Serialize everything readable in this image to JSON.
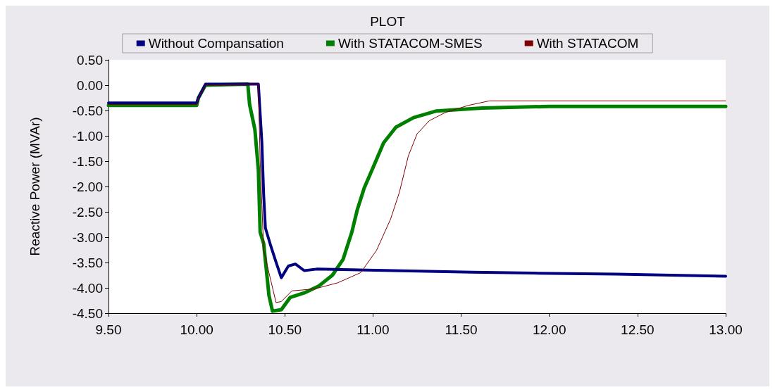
{
  "chart_data": {
    "type": "line",
    "title": "PLOT",
    "ylabel": "Reactive Power (MVAr)",
    "xlim": [
      9.5,
      13.0
    ],
    "xticks": [
      {
        "value": 9.5,
        "label": "9.50"
      },
      {
        "value": 10,
        "label": "10.00"
      },
      {
        "value": 10.5,
        "label": "10.50"
      },
      {
        "value": 11,
        "label": "11.00"
      },
      {
        "value": 11.5,
        "label": "11.50"
      },
      {
        "value": 12,
        "label": "12.00"
      },
      {
        "value": 12.5,
        "label": "12.50"
      },
      {
        "value": 13,
        "label": "13.00"
      }
    ],
    "ylim": [
      -4.5,
      0.5
    ],
    "yticks": [
      {
        "value": -4.5,
        "label": "-4.50"
      },
      {
        "value": -4,
        "label": "-4.00"
      },
      {
        "value": -3.5,
        "label": "-3.50"
      },
      {
        "value": -3,
        "label": "-3.00"
      },
      {
        "value": -2.5,
        "label": "-2.50"
      },
      {
        "value": -2,
        "label": "-2.00"
      },
      {
        "value": -1.5,
        "label": "-1.50"
      },
      {
        "value": -1,
        "label": "-1.00"
      },
      {
        "value": -0.5,
        "label": "-0.50"
      },
      {
        "value": 0,
        "label": "0.00"
      },
      {
        "value": 0.5,
        "label": "0.50"
      }
    ],
    "grid": false,
    "legend": "top",
    "marker": "none",
    "line_style": "solid",
    "series": [
      {
        "name": "Without Compansation",
        "color": "#000080",
        "x": [
          9.5,
          10.0,
          10.01,
          10.05,
          10.35,
          10.37,
          10.38,
          10.39,
          10.42,
          10.45,
          10.48,
          10.52,
          10.56,
          10.61,
          10.68,
          11.56,
          11.91,
          12.38,
          13.0
        ],
        "values": [
          -0.35,
          -0.35,
          -0.25,
          0.02,
          0.02,
          -1.14,
          -2.16,
          -2.82,
          -3.17,
          -3.49,
          -3.8,
          -3.57,
          -3.53,
          -3.66,
          -3.63,
          -3.69,
          -3.71,
          -3.73,
          -3.77
        ]
      },
      {
        "name": "With STATACOM-SMES",
        "color": "#008000",
        "x": [
          9.5,
          10.0,
          10.01,
          10.05,
          10.29,
          10.3,
          10.33,
          10.35,
          10.36,
          10.38,
          10.41,
          10.43,
          10.48,
          10.53,
          10.61,
          10.69,
          10.77,
          10.83,
          10.88,
          10.91,
          10.95,
          11.0,
          11.06,
          11.13,
          11.23,
          11.36,
          11.62,
          12.0,
          13.0
        ],
        "values": [
          -0.4,
          -0.4,
          -0.25,
          0.0,
          0.02,
          -0.38,
          -0.87,
          -1.67,
          -2.9,
          -3.13,
          -4.15,
          -4.46,
          -4.43,
          -4.19,
          -4.1,
          -3.97,
          -3.75,
          -3.44,
          -2.9,
          -2.47,
          -2.03,
          -1.63,
          -1.14,
          -0.83,
          -0.64,
          -0.51,
          -0.45,
          -0.42,
          -0.42
        ]
      },
      {
        "name": "With STATACOM",
        "color": "#800000",
        "x": [
          9.5,
          10.0,
          10.01,
          10.05,
          10.35,
          10.36,
          10.37,
          10.38,
          10.41,
          10.45,
          10.48,
          10.54,
          10.67,
          10.8,
          10.93,
          11.02,
          11.1,
          11.15,
          11.2,
          11.25,
          11.32,
          11.41,
          11.54,
          11.66,
          13.0
        ],
        "values": [
          -0.38,
          -0.38,
          -0.25,
          0.0,
          0.02,
          -1.5,
          -2.37,
          -3.26,
          -3.7,
          -4.29,
          -4.27,
          -4.06,
          -4.02,
          -3.9,
          -3.7,
          -3.26,
          -2.64,
          -2.11,
          -1.4,
          -0.96,
          -0.7,
          -0.54,
          -0.4,
          -0.31,
          -0.31
        ]
      }
    ]
  }
}
